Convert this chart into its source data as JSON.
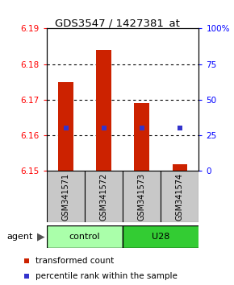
{
  "title": "GDS3547 / 1427381_at",
  "samples": [
    "GSM341571",
    "GSM341572",
    "GSM341573",
    "GSM341574"
  ],
  "bar_bottoms": [
    6.15,
    6.15,
    6.15,
    6.15
  ],
  "bar_tops": [
    6.175,
    6.184,
    6.169,
    6.152
  ],
  "percentile_ranks": [
    30,
    30,
    30,
    30
  ],
  "ylim_left": [
    6.15,
    6.19
  ],
  "ylim_right": [
    0,
    100
  ],
  "yticks_left": [
    6.15,
    6.16,
    6.17,
    6.18,
    6.19
  ],
  "yticks_right": [
    0,
    25,
    50,
    75,
    100
  ],
  "ytick_labels_right": [
    "0",
    "25",
    "50",
    "75",
    "100%"
  ],
  "bar_color": "#CC2200",
  "percentile_color": "#3333CC",
  "bg_sample": "#C8C8C8",
  "bg_group_control": "#AAFFAA",
  "bg_group_u28": "#33CC33",
  "legend_transformed": "transformed count",
  "legend_percentile": "percentile rank within the sample"
}
